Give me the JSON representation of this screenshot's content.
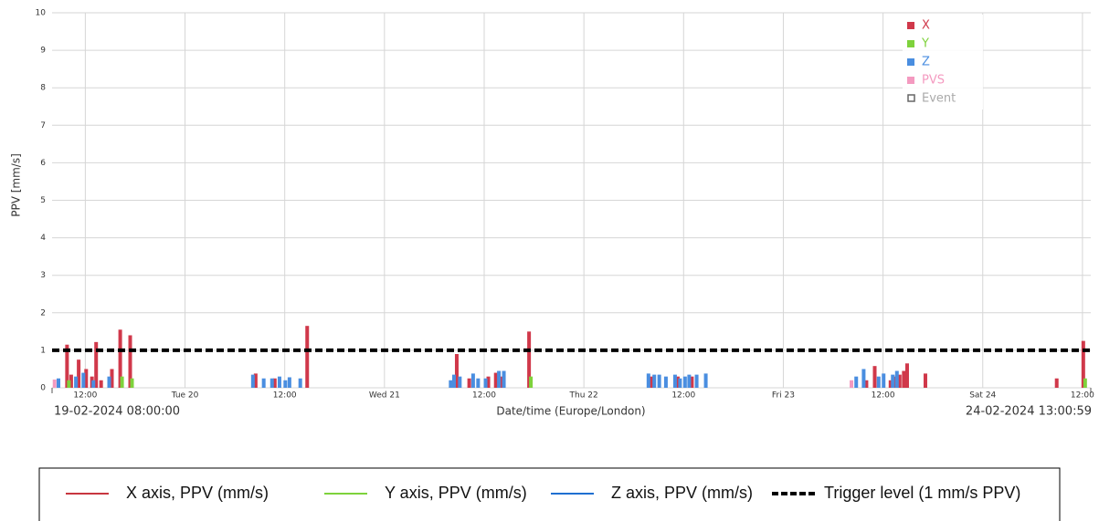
{
  "chart_data": {
    "type": "bar",
    "y_label": "PPV [mm/s]",
    "x_label": "Date/time (Europe/London)",
    "xlim": [
      0,
      125
    ],
    "xlim_labels": [
      "19-02-2024 08:00:00",
      "24-02-2024 13:00:59"
    ],
    "xticks": [
      {
        "value": 4,
        "label": "12:00"
      },
      {
        "value": 16,
        "label": "Tue 20"
      },
      {
        "value": 28,
        "label": "12:00"
      },
      {
        "value": 40,
        "label": "Wed 21"
      },
      {
        "value": 52,
        "label": "12:00"
      },
      {
        "value": 64,
        "label": "Thu 22"
      },
      {
        "value": 76,
        "label": "12:00"
      },
      {
        "value": 88,
        "label": "Fri 23"
      },
      {
        "value": 100,
        "label": "12:00"
      },
      {
        "value": 112,
        "label": "Sat 24"
      },
      {
        "value": 124,
        "label": "12:00"
      }
    ],
    "ylim": [
      0,
      10
    ],
    "yticks": [
      0,
      1,
      2,
      3,
      4,
      5,
      6,
      7,
      8,
      9,
      10
    ],
    "grid": true,
    "x": [
      0.3,
      1.1,
      1.8,
      2.3,
      3.2,
      4.1,
      4.8,
      5.3,
      5.9,
      7.2,
      8.2,
      9.4,
      24.5,
      25.8,
      26.8,
      27.7,
      28.4,
      28.9,
      30.2,
      30.7,
      48.3,
      48.7,
      49.4,
      50.2,
      51.0,
      51.6,
      52.5,
      53.4,
      54.1,
      54.7,
      57.4,
      72.1,
      72.8,
      73.4,
      74.2,
      75.3,
      75.9,
      76.5,
      77.0,
      77.9,
      79.0,
      96.2,
      97.1,
      98.0,
      99.0,
      99.8,
      100.4,
      100.9,
      101.5,
      102.0,
      102.5,
      102.9,
      105.1,
      120.9,
      124.1
    ],
    "series": [
      {
        "name": "X",
        "color": "#d0384a",
        "values": [
          null,
          null,
          1.15,
          0.35,
          0.75,
          0.5,
          0.3,
          1.22,
          0.2,
          0.5,
          1.55,
          1.4,
          0.38,
          null,
          0.25,
          null,
          null,
          null,
          null,
          1.65,
          null,
          0.9,
          null,
          0.25,
          null,
          null,
          0.3,
          0.4,
          0.3,
          null,
          1.5,
          0.3,
          null,
          null,
          null,
          0.3,
          null,
          null,
          0.3,
          null,
          null,
          null,
          null,
          0.2,
          0.58,
          null,
          null,
          0.2,
          0.3,
          0.35,
          0.45,
          0.65,
          0.38,
          0.25,
          1.25
        ]
      },
      {
        "name": "Z",
        "color": "#4a8ee0",
        "values": [
          null,
          0.25,
          null,
          null,
          0.3,
          0.4,
          null,
          0.2,
          null,
          0.3,
          null,
          null,
          0.35,
          0.25,
          0.25,
          0.3,
          0.2,
          0.28,
          0.25,
          null,
          0.2,
          0.35,
          0.3,
          null,
          0.38,
          0.25,
          0.25,
          null,
          0.45,
          0.45,
          null,
          0.38,
          0.35,
          0.35,
          0.3,
          0.35,
          0.25,
          0.3,
          0.35,
          0.35,
          0.38,
          null,
          0.3,
          0.5,
          null,
          0.3,
          0.38,
          null,
          0.35,
          0.45,
          null,
          null,
          null,
          null,
          null
        ]
      },
      {
        "name": "Y",
        "color": "#7ed23c",
        "values": [
          null,
          null,
          0.2,
          null,
          null,
          null,
          null,
          null,
          null,
          null,
          0.3,
          0.25,
          null,
          null,
          null,
          null,
          null,
          null,
          null,
          null,
          null,
          null,
          null,
          null,
          null,
          null,
          null,
          null,
          null,
          null,
          0.3,
          null,
          null,
          null,
          null,
          null,
          null,
          null,
          null,
          null,
          null,
          null,
          null,
          null,
          null,
          null,
          null,
          null,
          null,
          null,
          null,
          null,
          null,
          null,
          0.25
        ]
      },
      {
        "name": "PVS",
        "color": "#f49ac0",
        "values": [
          0.22,
          null,
          null,
          null,
          null,
          null,
          null,
          null,
          null,
          null,
          null,
          null,
          null,
          null,
          null,
          null,
          null,
          null,
          null,
          null,
          null,
          null,
          null,
          null,
          null,
          null,
          null,
          null,
          null,
          null,
          null,
          null,
          null,
          null,
          null,
          null,
          null,
          null,
          null,
          null,
          null,
          0.2,
          null,
          null,
          null,
          null,
          null,
          null,
          null,
          null,
          null,
          null,
          null,
          null,
          null
        ]
      }
    ],
    "legend_order": [
      0,
      2,
      1,
      3
    ],
    "event_legend": "Event",
    "trigger_level": 1,
    "footer_legend": [
      {
        "label": "X axis, PPV (mm/s)",
        "color": "#c8363f",
        "style": "solid"
      },
      {
        "label": "Y axis, PPV (mm/s)",
        "color": "#7ed23c",
        "style": "solid"
      },
      {
        "label": "Z axis, PPV (mm/s)",
        "color": "#1f6fd1",
        "style": "solid"
      },
      {
        "label": "Trigger level (1 mm/s PPV)",
        "color": "#000000",
        "style": "dashed"
      }
    ]
  }
}
